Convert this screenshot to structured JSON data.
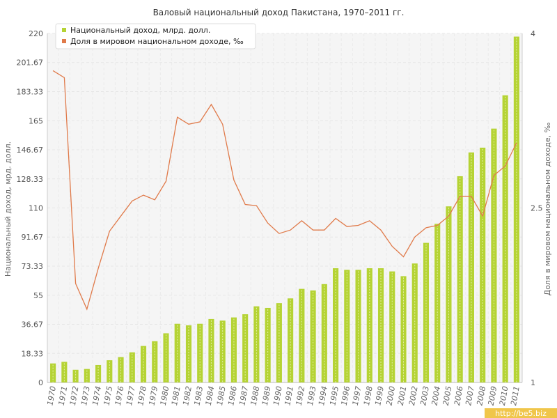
{
  "chart_data": {
    "type": "bar",
    "title": "Валовый национальный доход Пакистана, 1970–2011 гг.",
    "ylabel_left": "Национальный доход, мрд. долл.",
    "ylabel_right": "Доля в мировом национальном доходе, ‰",
    "ylim_left": [
      0,
      220
    ],
    "ylim_right": [
      1,
      4
    ],
    "yticks_left": [
      "0",
      "18.33",
      "36.67",
      "55",
      "73.33",
      "91.67",
      "110",
      "128.33",
      "146.67",
      "165",
      "183.33",
      "201.67",
      "220"
    ],
    "yticks_right": [
      "1",
      "2.5",
      "4"
    ],
    "grid": true,
    "legend_position": "top-left",
    "categories": [
      "1970",
      "1971",
      "1972",
      "1973",
      "1974",
      "1975",
      "1976",
      "1977",
      "1978",
      "1979",
      "1980",
      "1981",
      "1982",
      "1983",
      "1984",
      "1985",
      "1986",
      "1987",
      "1988",
      "1989",
      "1990",
      "1991",
      "1992",
      "1993",
      "1994",
      "1995",
      "1996",
      "1997",
      "1998",
      "1999",
      "2000",
      "2001",
      "2002",
      "2003",
      "2004",
      "2005",
      "2006",
      "2007",
      "2008",
      "2009",
      "2010",
      "2011"
    ],
    "series": [
      {
        "name": "Национальный доход, млрд. долл.",
        "type": "bar",
        "axis": "left",
        "color": "#b5d334",
        "values": [
          12,
          13,
          8,
          8.5,
          11,
          14,
          16,
          19,
          23,
          26,
          31,
          37,
          36,
          37,
          40,
          39,
          41,
          43,
          48,
          47,
          50,
          53,
          59,
          58,
          62,
          72,
          71,
          71,
          72,
          72,
          70,
          67,
          75,
          88,
          100,
          111,
          130,
          145,
          148,
          160,
          181,
          218
        ]
      },
      {
        "name": "Доля в мировом национальном доходе, ‰",
        "type": "line",
        "axis": "right",
        "color": "#e07a4a",
        "values": [
          3.68,
          3.62,
          1.85,
          1.63,
          1.98,
          2.3,
          2.43,
          2.56,
          2.61,
          2.57,
          2.73,
          3.28,
          3.22,
          3.24,
          3.39,
          3.22,
          2.74,
          2.53,
          2.52,
          2.37,
          2.28,
          2.31,
          2.39,
          2.31,
          2.31,
          2.41,
          2.34,
          2.35,
          2.39,
          2.31,
          2.17,
          2.08,
          2.25,
          2.33,
          2.35,
          2.43,
          2.6,
          2.6,
          2.43,
          2.78,
          2.86,
          3.06
        ]
      }
    ]
  },
  "watermark": "http://be5.biz"
}
